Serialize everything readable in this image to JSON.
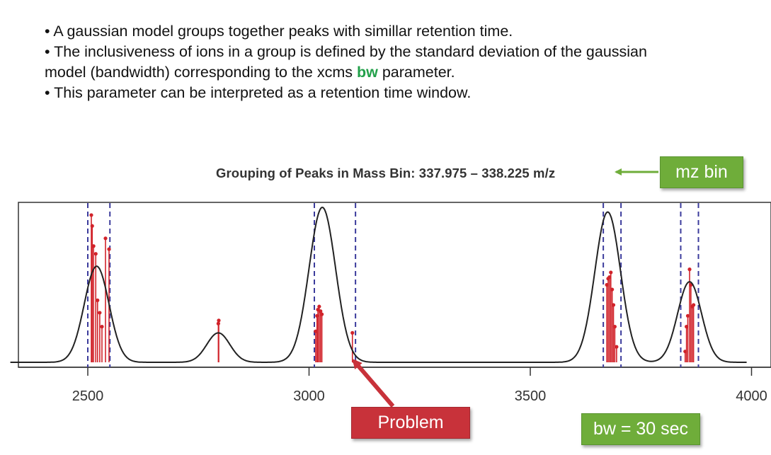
{
  "bullets": {
    "line1": "A gaussian model groups together peaks with simillar retention time.",
    "line2a": "The inclusiveness of ions in a group is defined by the standard deviation of the gaussian model (bandwidth) corresponding to the xcms ",
    "line2_highlight": "bw",
    "line2b": " parameter.",
    "line3": "This parameter can be interpreted as a retention time window."
  },
  "callouts": {
    "mz_bin": "mz bin",
    "bw": "bw = 30 sec",
    "problem": "Problem"
  },
  "colors": {
    "callout_green": "#6fad3a",
    "callout_red": "#c8323a",
    "highlight_green": "#22a04a",
    "peak_red": "#d1232a",
    "window_blue": "#3b3b9c"
  },
  "chart_data": {
    "type": "line",
    "title": "Grouping of Peaks in Mass Bin: 337.975 – 338.225 m/z",
    "xlabel": "",
    "ylabel": "",
    "xlim": [
      2400,
      4000
    ],
    "x_ticks": [
      "2500",
      "3000",
      "3500",
      "4000"
    ],
    "x_tick_values": [
      2500,
      3000,
      3500,
      4000
    ],
    "density_components": [
      {
        "center": 2520,
        "height": 0.62,
        "sigma": 28
      },
      {
        "center": 2795,
        "height": 0.19,
        "sigma": 26
      },
      {
        "center": 3030,
        "height": 1.0,
        "sigma": 30
      },
      {
        "center": 3675,
        "height": 0.97,
        "sigma": 29
      },
      {
        "center": 3860,
        "height": 0.52,
        "sigma": 27
      }
    ],
    "group_windows": [
      [
        2500,
        2550
      ],
      [
        3012,
        3105
      ],
      [
        3665,
        3705
      ],
      [
        3840,
        3880
      ]
    ],
    "peaks": [
      {
        "rt": 2508,
        "value": 0.95
      },
      {
        "rt": 2510,
        "value": 0.88
      },
      {
        "rt": 2513,
        "value": 0.75
      },
      {
        "rt": 2518,
        "value": 0.7
      },
      {
        "rt": 2522,
        "value": 0.4
      },
      {
        "rt": 2527,
        "value": 0.32
      },
      {
        "rt": 2532,
        "value": 0.23
      },
      {
        "rt": 2540,
        "value": 0.8
      },
      {
        "rt": 2548,
        "value": 0.73
      },
      {
        "rt": 2795,
        "value": 0.25
      },
      {
        "rt": 2796,
        "value": 0.27
      },
      {
        "rt": 3015,
        "value": 0.2
      },
      {
        "rt": 3018,
        "value": 0.3
      },
      {
        "rt": 3020,
        "value": 0.34
      },
      {
        "rt": 3023,
        "value": 0.36
      },
      {
        "rt": 3026,
        "value": 0.33
      },
      {
        "rt": 3029,
        "value": 0.31
      },
      {
        "rt": 3098,
        "value": 0.19
      },
      {
        "rt": 3673,
        "value": 0.5
      },
      {
        "rt": 3676,
        "value": 0.54
      },
      {
        "rt": 3679,
        "value": 0.55
      },
      {
        "rt": 3682,
        "value": 0.58
      },
      {
        "rt": 3685,
        "value": 0.47
      },
      {
        "rt": 3688,
        "value": 0.37
      },
      {
        "rt": 3691,
        "value": 0.23
      },
      {
        "rt": 3695,
        "value": 0.1
      },
      {
        "rt": 3850,
        "value": 0.07
      },
      {
        "rt": 3853,
        "value": 0.23
      },
      {
        "rt": 3856,
        "value": 0.3
      },
      {
        "rt": 3860,
        "value": 0.6
      },
      {
        "rt": 3863,
        "value": 0.5
      },
      {
        "rt": 3866,
        "value": 0.36
      },
      {
        "rt": 3869,
        "value": 0.37
      }
    ]
  }
}
